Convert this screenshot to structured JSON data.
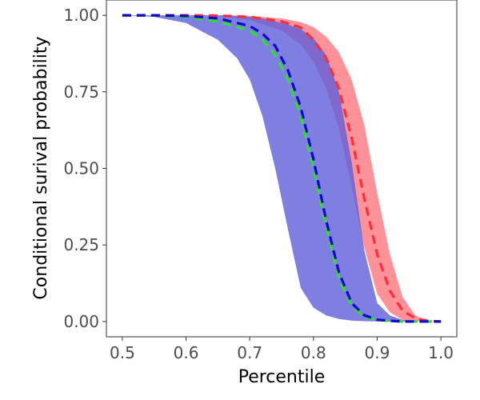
{
  "chart_data": {
    "type": "area",
    "title": "",
    "xlabel": "Percentile",
    "ylabel": "Conditional surival probability",
    "xlim": [
      0.475,
      1.025
    ],
    "ylim": [
      -0.05,
      1.05
    ],
    "x_ticks": [
      0.5,
      0.6,
      0.7,
      0.8,
      0.9,
      1.0
    ],
    "x_tick_labels": [
      "0.5",
      "0.6",
      "0.7",
      "0.8",
      "0.9",
      "1.0"
    ],
    "y_ticks": [
      0.0,
      0.25,
      0.5,
      0.75,
      1.0
    ],
    "y_tick_labels": [
      "0.00",
      "0.25",
      "0.50",
      "0.75",
      "1.00"
    ],
    "grid": false,
    "legend": "none",
    "bands": [
      {
        "color": "#ff7f86",
        "opacity": 0.85,
        "x": [
          0.5,
          0.55,
          0.6,
          0.65,
          0.7,
          0.75,
          0.78,
          0.8,
          0.82,
          0.84,
          0.86,
          0.88,
          0.9,
          0.92,
          0.94,
          0.96,
          0.98,
          1.0
        ],
        "upper": [
          1.0,
          1.0,
          1.0,
          1.0,
          0.998,
          0.99,
          0.978,
          0.962,
          0.93,
          0.88,
          0.79,
          0.64,
          0.42,
          0.22,
          0.08,
          0.02,
          0.0,
          0.0
        ],
        "lower": [
          1.0,
          1.0,
          1.0,
          0.998,
          0.985,
          0.95,
          0.905,
          0.85,
          0.76,
          0.63,
          0.44,
          0.24,
          0.09,
          0.03,
          0.005,
          0.0,
          0.0,
          0.0
        ]
      },
      {
        "color": "#5f5fd9",
        "opacity": 0.8,
        "x": [
          0.5,
          0.55,
          0.6,
          0.65,
          0.68,
          0.7,
          0.72,
          0.74,
          0.76,
          0.78,
          0.8,
          0.82,
          0.84,
          0.86,
          0.88,
          0.9,
          0.92,
          0.94,
          0.96,
          0.98,
          1.0
        ],
        "upper": [
          1.0,
          1.0,
          1.0,
          1.0,
          0.998,
          0.995,
          0.99,
          0.98,
          0.97,
          0.955,
          0.925,
          0.87,
          0.75,
          0.52,
          0.23,
          0.06,
          0.02,
          0.005,
          0.0,
          0.0,
          0.0
        ],
        "lower": [
          1.0,
          0.995,
          0.975,
          0.92,
          0.86,
          0.79,
          0.67,
          0.5,
          0.3,
          0.11,
          0.045,
          0.02,
          0.008,
          0.003,
          0.001,
          0.0,
          0.0,
          0.0,
          0.0,
          0.0,
          0.0
        ]
      }
    ],
    "series": [
      {
        "color": "#ff2d3a",
        "dash": "dashed",
        "x": [
          0.5,
          0.55,
          0.6,
          0.65,
          0.7,
          0.75,
          0.78,
          0.8,
          0.82,
          0.84,
          0.86,
          0.88,
          0.9,
          0.92,
          0.94,
          0.96,
          0.98,
          1.0
        ],
        "y": [
          1.0,
          1.0,
          1.0,
          0.999,
          0.995,
          0.98,
          0.96,
          0.92,
          0.86,
          0.76,
          0.6,
          0.4,
          0.22,
          0.1,
          0.035,
          0.01,
          0.002,
          0.0
        ]
      },
      {
        "color": "#2ee02e",
        "dash": "dashed",
        "x": [
          0.5,
          0.55,
          0.6,
          0.65,
          0.7,
          0.72,
          0.74,
          0.76,
          0.78,
          0.8,
          0.82,
          0.84,
          0.86,
          0.88,
          0.9,
          0.92,
          0.94,
          0.96,
          0.98,
          1.0
        ],
        "y": [
          1.0,
          1.0,
          0.995,
          0.98,
          0.95,
          0.92,
          0.87,
          0.79,
          0.67,
          0.5,
          0.31,
          0.14,
          0.05,
          0.015,
          0.005,
          0.002,
          0.0,
          0.0,
          0.0,
          0.0
        ]
      },
      {
        "color": "#0a0ac8",
        "dash": "dashed",
        "x": [
          0.5,
          0.55,
          0.6,
          0.65,
          0.7,
          0.72,
          0.74,
          0.76,
          0.78,
          0.8,
          0.82,
          0.84,
          0.86,
          0.88,
          0.9,
          0.92,
          0.94,
          0.96,
          0.98,
          1.0
        ],
        "y": [
          1.0,
          1.0,
          0.998,
          0.99,
          0.965,
          0.94,
          0.9,
          0.82,
          0.7,
          0.53,
          0.33,
          0.16,
          0.06,
          0.02,
          0.006,
          0.002,
          0.0,
          0.0,
          0.0,
          0.0
        ]
      }
    ]
  }
}
